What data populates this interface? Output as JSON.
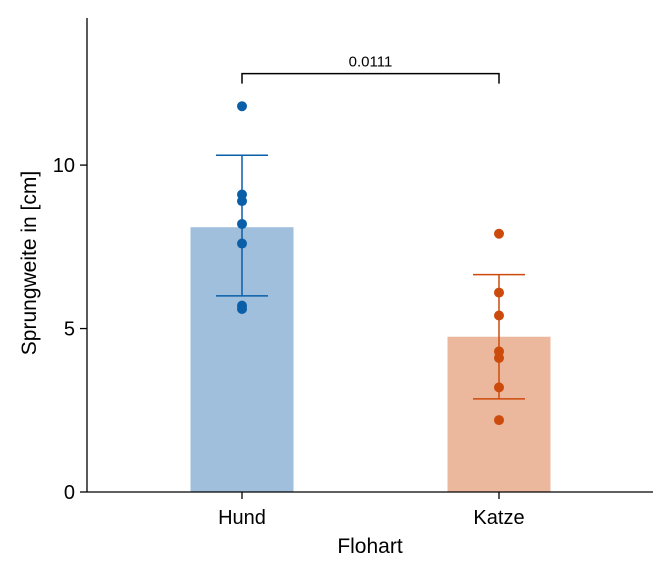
{
  "chart_data": {
    "type": "bar",
    "title": "",
    "xlabel": "Flohart",
    "ylabel": "Sprungweite in [cm]",
    "ylim": [
      0,
      14.5
    ],
    "yticks": [
      0,
      5,
      10
    ],
    "categories": [
      "Hund",
      "Katze"
    ],
    "values": [
      8.1,
      4.75
    ],
    "error_bars": [
      {
        "low": 6.0,
        "high": 10.3
      },
      {
        "low": 2.85,
        "high": 6.65
      }
    ],
    "points": [
      [
        11.8,
        9.1,
        8.9,
        8.2,
        7.6,
        5.7,
        5.6
      ],
      [
        7.9,
        6.1,
        5.4,
        4.3,
        4.1,
        3.2,
        2.2
      ]
    ],
    "significance": {
      "from": 0,
      "to": 1,
      "y": 12.8,
      "label": "0.0111"
    },
    "colors": {
      "bars": [
        "#a0bfdc",
        "#ebb89e"
      ],
      "points": [
        "#0a5fa8",
        "#cc4b0c"
      ],
      "axis": "#000000"
    },
    "grid": false,
    "legend": "none"
  }
}
